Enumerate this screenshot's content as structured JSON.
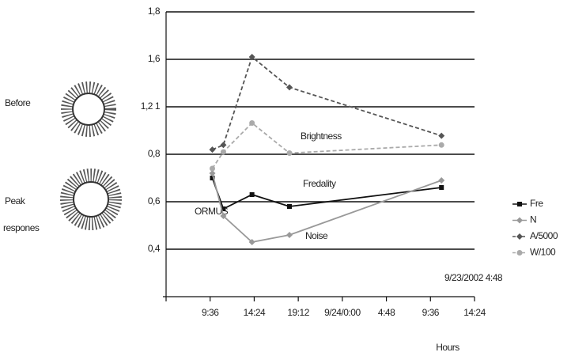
{
  "chart_data": {
    "type": "line",
    "xlabel": "Hours",
    "annotations": [
      "Brightness",
      "Fredality",
      "Noise",
      "ORMUS",
      "9/23/2002 4:48",
      "Before",
      "Peak",
      "respones"
    ],
    "x": [
      1.05,
      1.3,
      1.95,
      2.8,
      6.25
    ],
    "series": [
      {
        "name": "Fre",
        "color": "#111111",
        "marker": "square",
        "dashed": false,
        "values": [
          0.7,
          0.57,
          0.63,
          0.58,
          0.66
        ]
      },
      {
        "name": "N",
        "color": "#999999",
        "marker": "diamond",
        "dashed": false,
        "values": [
          0.72,
          0.54,
          0.43,
          0.46,
          0.69
        ]
      },
      {
        "name": "A/5000",
        "color": "#555555",
        "marker": "diamond",
        "dashed": true,
        "values": [
          0.84,
          0.88,
          1.61,
          1.37,
          0.96
        ]
      },
      {
        "name": "W/100",
        "color": "#aaaaaa",
        "marker": "circle",
        "dashed": true,
        "values": [
          0.74,
          0.82,
          1.07,
          0.81,
          0.88
        ]
      }
    ],
    "xlim": [
      0,
      7
    ],
    "xticks": [
      {
        "value": 1,
        "label": "9:36"
      },
      {
        "value": 2,
        "label": "14:24"
      },
      {
        "value": 3,
        "label": "19:12"
      },
      {
        "value": 4,
        "label": "9/24/0:00"
      },
      {
        "value": 5,
        "label": "4:48"
      },
      {
        "value": 6,
        "label": "9:36"
      },
      {
        "value": 7,
        "label": "14:24"
      }
    ],
    "ylim": [
      0.2,
      1.8
    ],
    "yticks": [
      {
        "value": 1.8,
        "label": "1,8"
      },
      {
        "value": 1.6,
        "label": "1,6"
      },
      {
        "value": 1.21,
        "label": "1,2 1"
      },
      {
        "value": 0.8,
        "label": "0,8"
      },
      {
        "value": 0.6,
        "label": "0,6"
      },
      {
        "value": 0.4,
        "label": "0,4"
      }
    ],
    "grid": true
  }
}
